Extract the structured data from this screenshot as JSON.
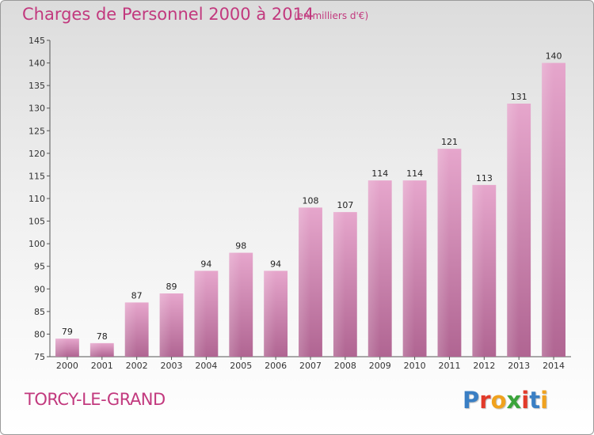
{
  "title": "Charges de Personnel 2000 à 2014",
  "subtitle": "(en milliers d'€)",
  "commune": "TORCY-LE-GRAND",
  "logo": {
    "text": "Proxiti",
    "letter_colors": [
      "#3a7fc4",
      "#e23a2a",
      "#f0a21e",
      "#3aa43a",
      "#e23a2a",
      "#3a7fc4",
      "#f0a21e"
    ]
  },
  "colors": {
    "bar_top": "#e6a6cc",
    "bar_bottom": "#b06592",
    "accent": "#c2397e"
  },
  "chart_data": {
    "type": "bar",
    "title": "Charges de Personnel 2000 à 2014",
    "subtitle": "(en milliers d'€)",
    "xlabel": "",
    "ylabel": "",
    "categories": [
      "2000",
      "2001",
      "2002",
      "2003",
      "2004",
      "2005",
      "2006",
      "2007",
      "2008",
      "2009",
      "2010",
      "2011",
      "2012",
      "2013",
      "2014"
    ],
    "values": [
      79,
      78,
      87,
      89,
      94,
      98,
      94,
      108,
      107,
      114,
      114,
      121,
      113,
      131,
      140
    ],
    "ylim": [
      75,
      145
    ],
    "yticks": [
      75,
      80,
      85,
      90,
      95,
      100,
      105,
      110,
      115,
      120,
      125,
      130,
      135,
      140,
      145
    ],
    "grid": false,
    "legend": "none"
  }
}
